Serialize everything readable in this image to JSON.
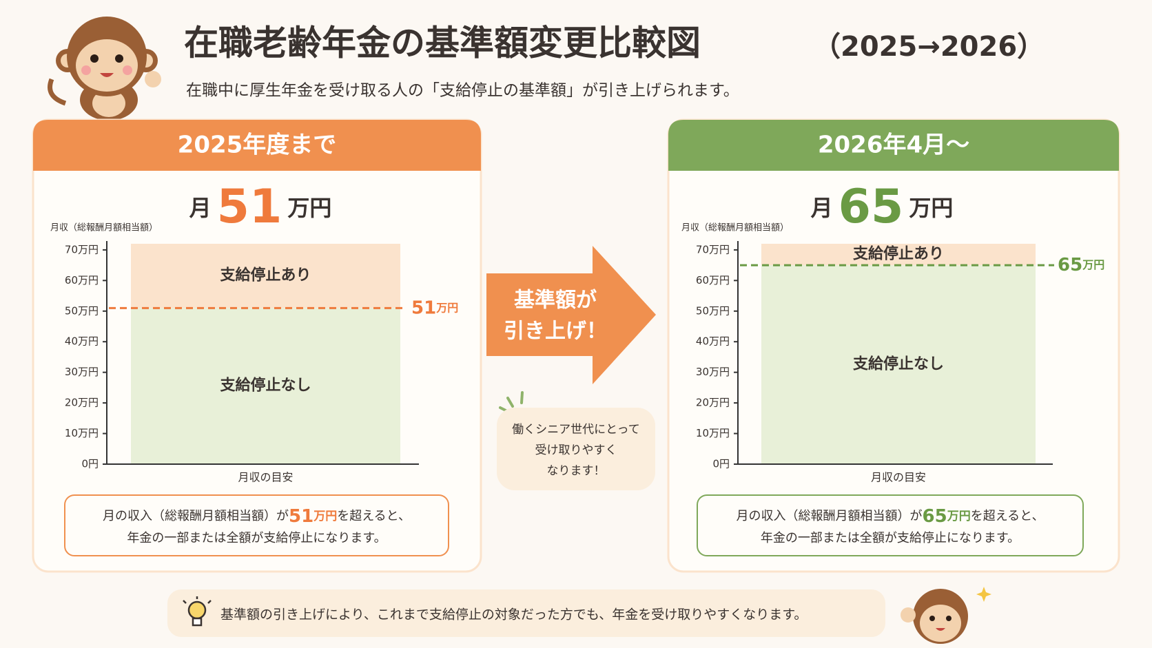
{
  "title": "在職老齢年金の基準額変更比較図",
  "title_years": "（2025→2026）",
  "subtitle": "在職中に厚生年金を受け取る人の「支給停止の基準額」が引き上げられます。",
  "arrow": {
    "lines": [
      "基準額が",
      "引き上げ！"
    ]
  },
  "bubble": {
    "lines": [
      "働くシニア世代にとって",
      "受け取りやすく",
      "なります！"
    ]
  },
  "footer": "基準額の引き上げにより、これまで支給停止の対象だった方でも、年金を受け取りやすくなります。",
  "chart_data": [
    {
      "type": "threshold",
      "panel_title": "2025年度まで",
      "heading_prefix": "月",
      "unit": "万円",
      "y_label": "月収（総報酬月額相当額）",
      "x_label": "月収の目安",
      "threshold": 51,
      "regions": [
        "支給停止あり",
        "支給停止なし"
      ],
      "color": "#ef7a3c",
      "header_color": "#f0904f",
      "above_color": "#fbe3cc",
      "below_color": "#e8f0d8",
      "ylim": [
        0,
        72
      ],
      "yticks": [
        {
          "value": 0,
          "label": "0円"
        },
        {
          "value": 10,
          "label": "10万円"
        },
        {
          "value": 20,
          "label": "20万円"
        },
        {
          "value": 30,
          "label": "30万円"
        },
        {
          "value": 40,
          "label": "40万円"
        },
        {
          "value": 50,
          "label": "50万円"
        },
        {
          "value": 60,
          "label": "60万円"
        },
        {
          "value": 70,
          "label": "70万円"
        }
      ],
      "note": [
        "月の収入（総報酬月額相当額）が",
        "を超えると、",
        "年金の一部または全額が支給停止になります。"
      ]
    },
    {
      "type": "threshold",
      "panel_title": "2026年4月～",
      "heading_prefix": "月",
      "unit": "万円",
      "y_label": "月収（総報酬月額相当額）",
      "x_label": "月収の目安",
      "threshold": 65,
      "regions": [
        "支給停止あり",
        "支給停止なし"
      ],
      "color": "#6a9a44",
      "header_color": "#7fa85a",
      "above_color": "#fbe3cc",
      "below_color": "#e8f0d8",
      "ylim": [
        0,
        72
      ],
      "yticks": [
        {
          "value": 0,
          "label": "0円"
        },
        {
          "value": 10,
          "label": "10万円"
        },
        {
          "value": 20,
          "label": "20万円"
        },
        {
          "value": 30,
          "label": "30万円"
        },
        {
          "value": 40,
          "label": "40万円"
        },
        {
          "value": 50,
          "label": "50万円"
        },
        {
          "value": 60,
          "label": "60万円"
        },
        {
          "value": 70,
          "label": "70万円"
        }
      ],
      "note": [
        "月の収入（総報酬月額相当額）が",
        "を超えると、",
        "年金の一部または全額が支給停止になります。"
      ]
    }
  ]
}
